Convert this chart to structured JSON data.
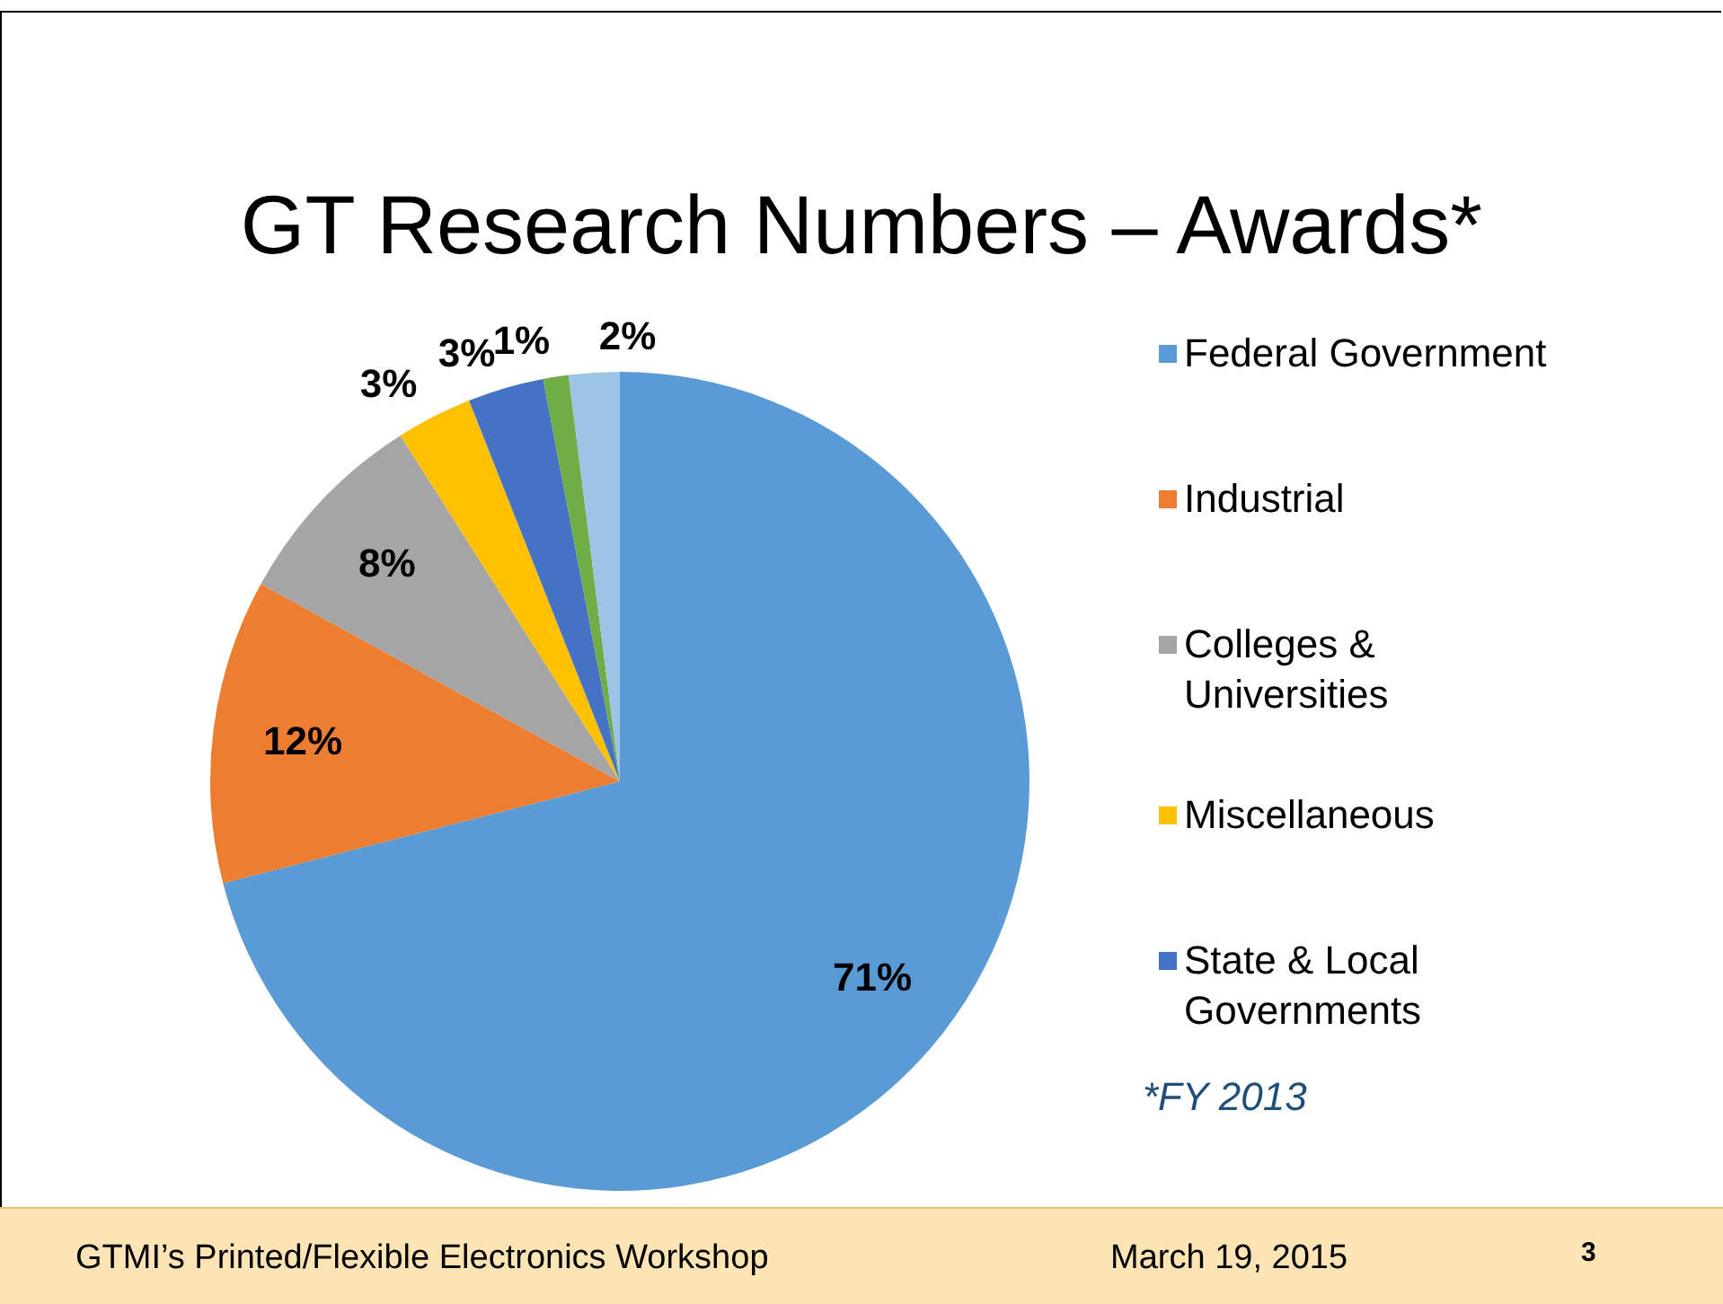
{
  "chart_data": {
    "type": "pie",
    "title": "GT Research Numbers – Awards*",
    "categories": [
      "Federal Government",
      "Industrial",
      "Colleges & Universities",
      "Miscellaneous",
      "State & Local Governments",
      null,
      null
    ],
    "values": [
      71,
      12,
      8,
      3,
      3,
      1,
      2
    ],
    "value_labels": [
      "71%",
      "12%",
      "8%",
      "3%",
      "3%",
      "1%",
      "2%"
    ],
    "colors": [
      "#5b9bd5",
      "#ed7d31",
      "#a5a5a5",
      "#ffc000",
      "#4472c4",
      "#70ad47",
      "#9dc3e6"
    ],
    "legend": "right",
    "annotations": [
      "*FY 2013",
      "GTMI’s Printed/Flexible Electronics Workshop",
      "March 19, 2015",
      "3"
    ]
  }
}
